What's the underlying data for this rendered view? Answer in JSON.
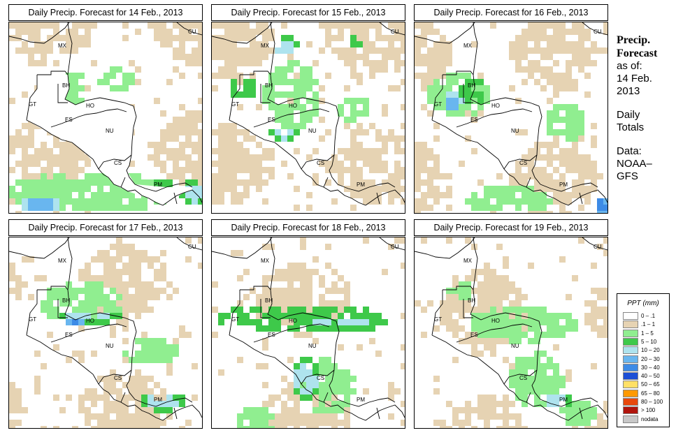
{
  "panels": [
    {
      "title": "Daily Precip. Forecast for  14 Feb., 2013"
    },
    {
      "title": "Daily Precip. Forecast for  15 Feb., 2013"
    },
    {
      "title": "Daily Precip. Forecast for  16 Feb., 2013"
    },
    {
      "title": "Daily Precip. Forecast for  17 Feb., 2013"
    },
    {
      "title": "Daily Precip. Forecast for  18 Feb., 2013"
    },
    {
      "title": "Daily Precip. Forecast for  19 Feb., 2013"
    }
  ],
  "countries": [
    "CU",
    "MX",
    "BH",
    "GT",
    "HO",
    "ES",
    "NU",
    "CS",
    "PM"
  ],
  "sidebar": {
    "heading1": "Precip.",
    "heading2": "Forecast",
    "asof": "as of:",
    "date1": "14 Feb.",
    "date2": "2013",
    "totals1": "Daily",
    "totals2": "Totals",
    "data1": "Data:",
    "data2": "NOAA–",
    "data3": "GFS"
  },
  "legend": {
    "title": "PPT (mm)",
    "items": [
      {
        "label": "0 – .1",
        "color": "#ffffff"
      },
      {
        "label": ".1 – 1",
        "color": "#e6d3b3"
      },
      {
        "label": "1 – 5",
        "color": "#90ee90"
      },
      {
        "label": "5 – 10",
        "color": "#3ec94a"
      },
      {
        "label": "10 – 20",
        "color": "#aee3ee"
      },
      {
        "label": "20 – 30",
        "color": "#69b6ef"
      },
      {
        "label": "30 – 40",
        "color": "#3d8be6"
      },
      {
        "label": "40 – 50",
        "color": "#1c4fd6"
      },
      {
        "label": "50 – 65",
        "color": "#ffe066"
      },
      {
        "label": "65 – 80",
        "color": "#ff9900"
      },
      {
        "label": "80 – 100",
        "color": "#e8480c"
      },
      {
        "label": "> 100",
        "color": "#b0140c"
      },
      {
        "label": "nodata",
        "color": "#c8c8c8"
      }
    ]
  }
}
